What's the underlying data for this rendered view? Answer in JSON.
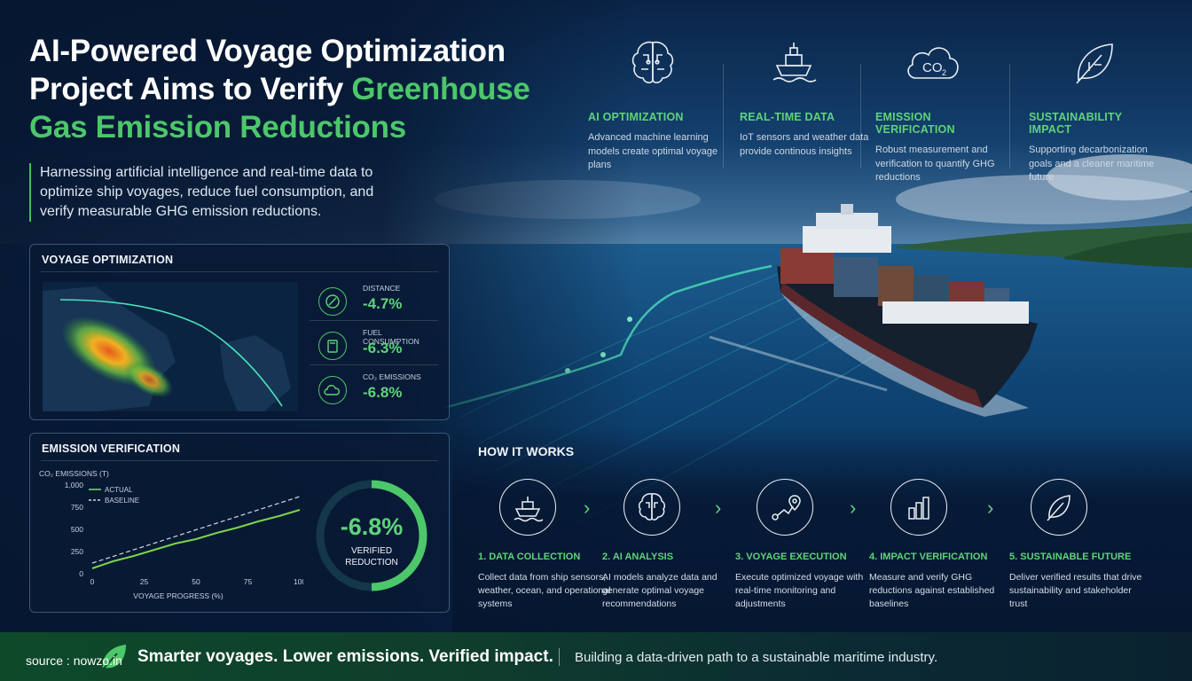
{
  "header": {
    "title_line1": "AI-Powered Voyage Optimization",
    "title_line2_white": "Project Aims to Verify ",
    "title_line2_green": "Greenhouse",
    "title_line3_green": "Gas Emission Reductions",
    "subtitle": "Harnessing artificial intelligence and real-time data to optimize ship voyages, reduce fuel consumption, and verify measurable GHG emission reductions."
  },
  "features": [
    {
      "icon": "brain-icon",
      "title": "AI OPTIMIZATION",
      "desc": "Advanced machine learning models create optimal voyage plans"
    },
    {
      "icon": "ship-icon",
      "title": "REAL-TIME DATA",
      "desc": "IoT sensors and weather data provide continous insights"
    },
    {
      "icon": "co2-cloud-icon",
      "title": "EMISSION VERIFICATION",
      "desc": "Robust measurement and verification to quantify GHG reductions"
    },
    {
      "icon": "leaf-icon",
      "title": "SUSTAINABILITY IMPACT",
      "desc": "Supporting decarbonization goals and a cleaner maritime future"
    }
  ],
  "voyage_panel": {
    "title": "VOYAGE OPTIMIZATION",
    "metrics": [
      {
        "icon": "distance-icon",
        "label": "DISTANCE",
        "value": "-4.7%"
      },
      {
        "icon": "fuel-icon",
        "label": "FUEL CONSUMPTION",
        "value": "-6.3%"
      },
      {
        "icon": "co2-icon",
        "label": "CO₂ EMISSIONS",
        "value": "-6.8%"
      }
    ]
  },
  "emission_panel": {
    "title": "EMISSION VERIFICATION",
    "gauge_value": "-6.8%",
    "gauge_label_line1": "VERIFIED",
    "gauge_label_line2": "REDUCTION",
    "gauge_fraction": 0.5
  },
  "chart_data": {
    "type": "line",
    "title": "CO₂ EMISSIONS (T)",
    "xlabel": "VOYAGE PROGRESS (%)",
    "ylabel": "",
    "xlim": [
      0,
      100
    ],
    "ylim": [
      0,
      1000
    ],
    "x_ticks": [
      "0",
      "25",
      "50",
      "75",
      "100"
    ],
    "y_ticks": [
      "0",
      "250",
      "500",
      "750",
      "1,000"
    ],
    "legend_position": "top-left",
    "series": [
      {
        "name": "ACTUAL",
        "color": "#7ad44a",
        "style": "solid",
        "x": [
          0,
          10,
          20,
          30,
          40,
          50,
          60,
          70,
          80,
          90,
          100
        ],
        "y": [
          60,
          140,
          200,
          270,
          340,
          390,
          460,
          520,
          590,
          650,
          720
        ]
      },
      {
        "name": "BASELINE",
        "color": "#cfd8e2",
        "style": "dashed",
        "x": [
          0,
          100
        ],
        "y": [
          120,
          870
        ]
      }
    ]
  },
  "how_it_works": {
    "title": "HOW IT WORKS",
    "steps": [
      {
        "icon": "ship-icon",
        "title": "1. DATA COLLECTION",
        "desc": "Collect data from ship sensors, weather, ocean, and operational systems"
      },
      {
        "icon": "brain-icon",
        "title": "2. AI ANALYSIS",
        "desc": "AI models analyze data and generate optimal voyage recommendations"
      },
      {
        "icon": "route-icon",
        "title": "3. VOYAGE EXECUTION",
        "desc": "Execute optimized voyage with real-time monitoring and adjustments"
      },
      {
        "icon": "bar-chart-icon",
        "title": "4. IMPACT VERIFICATION",
        "desc": "Measure and verify GHG reductions against established baselines"
      },
      {
        "icon": "leaf-icon",
        "title": "5. SUSTAINABLE FUTURE",
        "desc": "Deliver verified results that drive sustainability and stakeholder trust"
      }
    ],
    "arrow": "›"
  },
  "footer": {
    "tagline": "Smarter voyages. Lower emissions. Verified impact.",
    "statement": "Building a data-driven path to a sustainable maritime industry.",
    "source": "source : nowzo.in"
  },
  "colors": {
    "accent": "#4cc76a",
    "panel_bg": "#081a34",
    "footer_green": "#0d4a2a"
  }
}
